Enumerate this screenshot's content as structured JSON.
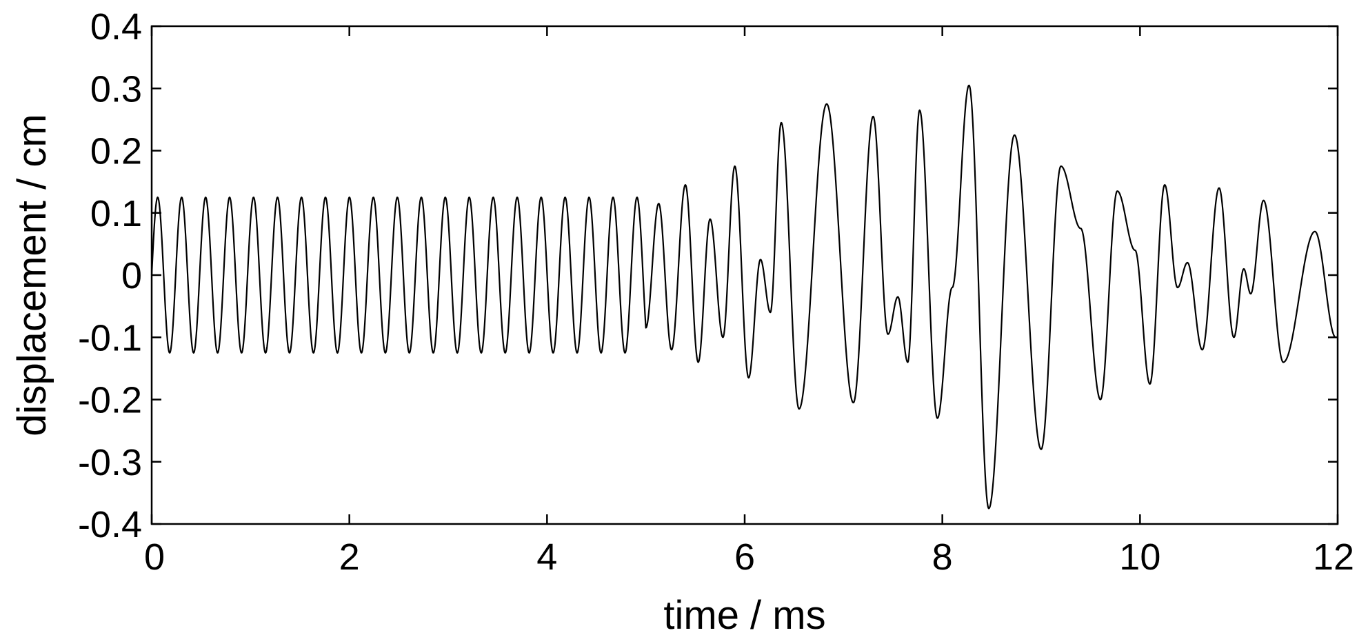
{
  "chart_data": {
    "type": "line",
    "xlabel": "time / ms",
    "ylabel": "displacement / cm",
    "xlim": [
      0,
      12
    ],
    "ylim": [
      -0.4,
      0.4
    ],
    "xticks": [
      0,
      2,
      4,
      6,
      8,
      10,
      12
    ],
    "xtick_labels": [
      "0",
      "2",
      "4",
      "6",
      "8",
      "10",
      "12"
    ],
    "yticks": [
      0.4,
      0.3,
      0.2,
      0.1,
      0,
      -0.1,
      -0.2,
      -0.3,
      -0.4
    ],
    "ytick_labels": [
      "0.4",
      "0.3",
      "0.2",
      "0.1",
      "0",
      "-0.1",
      "-0.2",
      "-0.3",
      "-0.4"
    ],
    "grid": false,
    "legend": false,
    "series": [
      {
        "steady_phase": {
          "start": 0.0,
          "end": 5.0,
          "period": 0.2425,
          "amplitude": 0.125,
          "offset": 0.0
        },
        "extrema": [
          [
            5.0,
            -0.13
          ],
          [
            5.13,
            0.115
          ],
          [
            5.26,
            -0.12
          ],
          [
            5.4,
            0.145
          ],
          [
            5.53,
            -0.14
          ],
          [
            5.65,
            0.09
          ],
          [
            5.78,
            -0.1
          ],
          [
            5.9,
            0.175
          ],
          [
            6.04,
            -0.165
          ],
          [
            6.16,
            0.025
          ],
          [
            6.26,
            -0.06
          ],
          [
            6.37,
            0.245
          ],
          [
            6.55,
            -0.215
          ],
          [
            6.83,
            0.275
          ],
          [
            7.1,
            -0.205
          ],
          [
            7.3,
            0.255
          ],
          [
            7.45,
            -0.095
          ],
          [
            7.55,
            -0.035
          ],
          [
            7.65,
            -0.14
          ],
          [
            7.77,
            0.265
          ],
          [
            7.95,
            -0.23
          ],
          [
            8.1,
            -0.02
          ],
          [
            8.27,
            0.305
          ],
          [
            8.47,
            -0.375
          ],
          [
            8.73,
            0.225
          ],
          [
            9.0,
            -0.28
          ],
          [
            9.2,
            0.175
          ],
          [
            9.4,
            0.075
          ],
          [
            9.6,
            -0.2
          ],
          [
            9.77,
            0.135
          ],
          [
            9.95,
            0.04
          ],
          [
            10.1,
            -0.175
          ],
          [
            10.25,
            0.145
          ],
          [
            10.38,
            -0.02
          ],
          [
            10.48,
            0.02
          ],
          [
            10.63,
            -0.12
          ],
          [
            10.8,
            0.14
          ],
          [
            10.95,
            -0.1
          ],
          [
            11.05,
            0.01
          ],
          [
            11.12,
            -0.03
          ],
          [
            11.25,
            0.12
          ],
          [
            11.45,
            -0.14
          ],
          [
            11.77,
            0.07
          ],
          [
            11.98,
            -0.1
          ],
          [
            12.0,
            -0.1
          ]
        ]
      }
    ]
  }
}
